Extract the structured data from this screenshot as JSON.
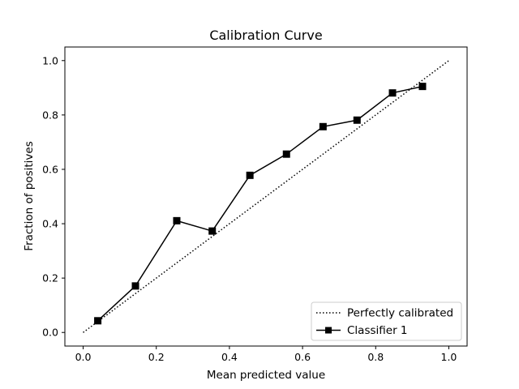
{
  "chart_data": {
    "type": "line",
    "title": "Calibration Curve",
    "xlabel": "Mean predicted value",
    "ylabel": "Fraction of positives",
    "xlim": [
      -0.05,
      1.05
    ],
    "ylim": [
      -0.05,
      1.05
    ],
    "x_ticks": [
      "0.0",
      "0.2",
      "0.4",
      "0.6",
      "0.8",
      "1.0"
    ],
    "y_ticks": [
      "0.0",
      "0.2",
      "0.4",
      "0.6",
      "0.8",
      "1.0"
    ],
    "grid": false,
    "legend_position": "lower-right",
    "series": [
      {
        "name": "Perfectly calibrated",
        "style": "dotted",
        "marker": "none",
        "color": "#000000",
        "x": [
          0.0,
          1.0
        ],
        "y": [
          0.0,
          1.0
        ]
      },
      {
        "name": "Classifier 1",
        "style": "solid",
        "marker": "square",
        "color": "#000000",
        "x": [
          0.04,
          0.143,
          0.256,
          0.353,
          0.456,
          0.556,
          0.656,
          0.749,
          0.846,
          0.928
        ],
        "y": [
          0.043,
          0.171,
          0.411,
          0.373,
          0.578,
          0.656,
          0.757,
          0.781,
          0.881,
          0.905
        ]
      }
    ]
  }
}
